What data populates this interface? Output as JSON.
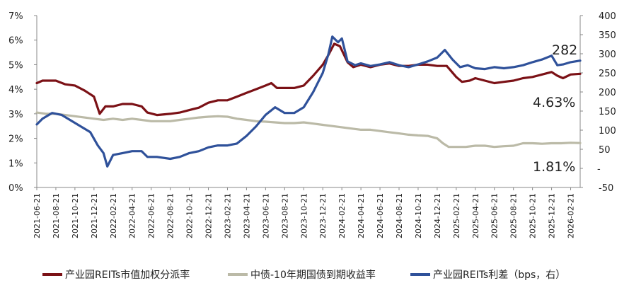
{
  "chart_data": {
    "type": "line",
    "title": "",
    "y_left": {
      "ticks": [
        "0%",
        "1%",
        "2%",
        "3%",
        "4%",
        "5%",
        "6%",
        "7%"
      ],
      "range": [
        0,
        7
      ]
    },
    "y_right": {
      "ticks": [
        "-50",
        "-",
        "50",
        "100",
        "150",
        "200",
        "250",
        "300",
        "350",
        "400"
      ],
      "range": [
        -50,
        400
      ]
    },
    "x_ticks": [
      "2021-06-21",
      "2021-08-21",
      "2021-10-21",
      "2021-12-21",
      "2022-02-21",
      "2022-04-21",
      "2022-06-21",
      "2022-08-21",
      "2022-10-21",
      "2022-12-21",
      "2023-02-21",
      "2023-04-21",
      "2023-06-21",
      "2023-08-21",
      "2023-10-21",
      "2023-12-21",
      "2024-02-21",
      "2024-04-21",
      "2024-06-21",
      "2024-08-21",
      "2024-10-21",
      "2024-12-21",
      "2025-02-21",
      "2025-04-21",
      "2025-06-21",
      "2025-08-21",
      "2025-10-21",
      "2025-12-21",
      "2026-02-21"
    ],
    "series": [
      {
        "name": "产业园REITs市值加权分派率",
        "color": "#7b1116",
        "axis": "left",
        "end_label": "4.63%",
        "points": [
          [
            0,
            4.25
          ],
          [
            0.3,
            4.35
          ],
          [
            1,
            4.35
          ],
          [
            1.5,
            4.2
          ],
          [
            2,
            4.15
          ],
          [
            2.5,
            3.95
          ],
          [
            3,
            3.7
          ],
          [
            3.3,
            3.0
          ],
          [
            3.6,
            3.3
          ],
          [
            4,
            3.3
          ],
          [
            4.5,
            3.4
          ],
          [
            5,
            3.4
          ],
          [
            5.5,
            3.3
          ],
          [
            5.8,
            3.05
          ],
          [
            6.3,
            2.95
          ],
          [
            7,
            3.0
          ],
          [
            7.5,
            3.05
          ],
          [
            8,
            3.15
          ],
          [
            8.5,
            3.25
          ],
          [
            9,
            3.45
          ],
          [
            9.5,
            3.55
          ],
          [
            10,
            3.55
          ],
          [
            10.5,
            3.7
          ],
          [
            11,
            3.85
          ],
          [
            11.5,
            4.0
          ],
          [
            12,
            4.15
          ],
          [
            12.3,
            4.25
          ],
          [
            12.6,
            4.05
          ],
          [
            13,
            4.05
          ],
          [
            13.5,
            4.05
          ],
          [
            14,
            4.15
          ],
          [
            14.5,
            4.55
          ],
          [
            15,
            5.0
          ],
          [
            15.3,
            5.4
          ],
          [
            15.6,
            5.85
          ],
          [
            15.9,
            5.75
          ],
          [
            16.3,
            5.1
          ],
          [
            16.6,
            4.9
          ],
          [
            17,
            5.0
          ],
          [
            17.5,
            4.9
          ],
          [
            18,
            5.0
          ],
          [
            18.5,
            5.05
          ],
          [
            19,
            4.95
          ],
          [
            19.5,
            4.95
          ],
          [
            20,
            5.0
          ],
          [
            20.5,
            5.0
          ],
          [
            21,
            4.95
          ],
          [
            21.5,
            4.95
          ],
          [
            22,
            4.5
          ],
          [
            22.3,
            4.3
          ],
          [
            22.7,
            4.35
          ],
          [
            23,
            4.45
          ],
          [
            23.5,
            4.35
          ],
          [
            24,
            4.25
          ],
          [
            24.5,
            4.3
          ],
          [
            25,
            4.35
          ],
          [
            25.5,
            4.45
          ],
          [
            26,
            4.5
          ],
          [
            26.5,
            4.6
          ],
          [
            27,
            4.7
          ],
          [
            27.3,
            4.55
          ],
          [
            27.6,
            4.45
          ],
          [
            28,
            4.6
          ],
          [
            28.5,
            4.63
          ]
        ]
      },
      {
        "name": "中债-10年期国债到期收益率",
        "color": "#bbbaa7",
        "axis": "left",
        "end_label": "1.81%",
        "points": [
          [
            0,
            3.05
          ],
          [
            0.5,
            3.0
          ],
          [
            1,
            3.0
          ],
          [
            1.5,
            2.95
          ],
          [
            2,
            2.9
          ],
          [
            2.5,
            2.85
          ],
          [
            3,
            2.8
          ],
          [
            3.5,
            2.75
          ],
          [
            4,
            2.8
          ],
          [
            4.5,
            2.75
          ],
          [
            5,
            2.8
          ],
          [
            5.5,
            2.75
          ],
          [
            6,
            2.7
          ],
          [
            6.5,
            2.7
          ],
          [
            7,
            2.7
          ],
          [
            7.5,
            2.75
          ],
          [
            8,
            2.8
          ],
          [
            8.5,
            2.85
          ],
          [
            9,
            2.88
          ],
          [
            9.5,
            2.9
          ],
          [
            10,
            2.88
          ],
          [
            10.5,
            2.8
          ],
          [
            11,
            2.75
          ],
          [
            11.5,
            2.7
          ],
          [
            12,
            2.68
          ],
          [
            12.5,
            2.65
          ],
          [
            13,
            2.62
          ],
          [
            13.5,
            2.62
          ],
          [
            14,
            2.65
          ],
          [
            14.5,
            2.6
          ],
          [
            15,
            2.55
          ],
          [
            15.5,
            2.5
          ],
          [
            16,
            2.45
          ],
          [
            16.5,
            2.4
          ],
          [
            17,
            2.35
          ],
          [
            17.5,
            2.35
          ],
          [
            18,
            2.3
          ],
          [
            18.5,
            2.25
          ],
          [
            19,
            2.2
          ],
          [
            19.5,
            2.15
          ],
          [
            20,
            2.12
          ],
          [
            20.5,
            2.1
          ],
          [
            21,
            2.0
          ],
          [
            21.3,
            1.8
          ],
          [
            21.6,
            1.65
          ],
          [
            22,
            1.65
          ],
          [
            22.5,
            1.65
          ],
          [
            23,
            1.7
          ],
          [
            23.5,
            1.7
          ],
          [
            24,
            1.65
          ],
          [
            24.5,
            1.68
          ],
          [
            25,
            1.7
          ],
          [
            25.5,
            1.8
          ],
          [
            26,
            1.8
          ],
          [
            26.5,
            1.78
          ],
          [
            27,
            1.8
          ],
          [
            27.5,
            1.8
          ],
          [
            28,
            1.82
          ],
          [
            28.5,
            1.81
          ]
        ]
      },
      {
        "name": "产业园REITs利差（bps，右）",
        "color": "#2f519a",
        "axis": "right",
        "end_label": "282",
        "points": [
          [
            0,
            115
          ],
          [
            0.3,
            130
          ],
          [
            0.8,
            145
          ],
          [
            1.3,
            140
          ],
          [
            1.8,
            125
          ],
          [
            2.3,
            110
          ],
          [
            2.8,
            95
          ],
          [
            3.2,
            60
          ],
          [
            3.5,
            40
          ],
          [
            3.7,
            5
          ],
          [
            4,
            35
          ],
          [
            4.5,
            40
          ],
          [
            5,
            45
          ],
          [
            5.5,
            45
          ],
          [
            5.8,
            30
          ],
          [
            6.3,
            30
          ],
          [
            7,
            25
          ],
          [
            7.5,
            30
          ],
          [
            8,
            40
          ],
          [
            8.5,
            45
          ],
          [
            9,
            55
          ],
          [
            9.5,
            60
          ],
          [
            10,
            60
          ],
          [
            10.5,
            65
          ],
          [
            11,
            85
          ],
          [
            11.5,
            110
          ],
          [
            12,
            140
          ],
          [
            12.5,
            160
          ],
          [
            13,
            145
          ],
          [
            13.5,
            145
          ],
          [
            14,
            160
          ],
          [
            14.5,
            200
          ],
          [
            15,
            250
          ],
          [
            15.3,
            300
          ],
          [
            15.5,
            345
          ],
          [
            15.8,
            330
          ],
          [
            16,
            340
          ],
          [
            16.3,
            280
          ],
          [
            16.7,
            270
          ],
          [
            17,
            275
          ],
          [
            17.5,
            268
          ],
          [
            18,
            272
          ],
          [
            18.5,
            278
          ],
          [
            19,
            270
          ],
          [
            19.5,
            265
          ],
          [
            20,
            272
          ],
          [
            20.5,
            280
          ],
          [
            21,
            290
          ],
          [
            21.4,
            310
          ],
          [
            21.8,
            285
          ],
          [
            22.2,
            265
          ],
          [
            22.6,
            270
          ],
          [
            23,
            262
          ],
          [
            23.5,
            260
          ],
          [
            24,
            265
          ],
          [
            24.5,
            262
          ],
          [
            25,
            265
          ],
          [
            25.5,
            270
          ],
          [
            26,
            278
          ],
          [
            26.5,
            285
          ],
          [
            27,
            295
          ],
          [
            27.3,
            270
          ],
          [
            27.6,
            272
          ],
          [
            28,
            278
          ],
          [
            28.5,
            282
          ]
        ]
      }
    ],
    "legend": "bottom"
  }
}
